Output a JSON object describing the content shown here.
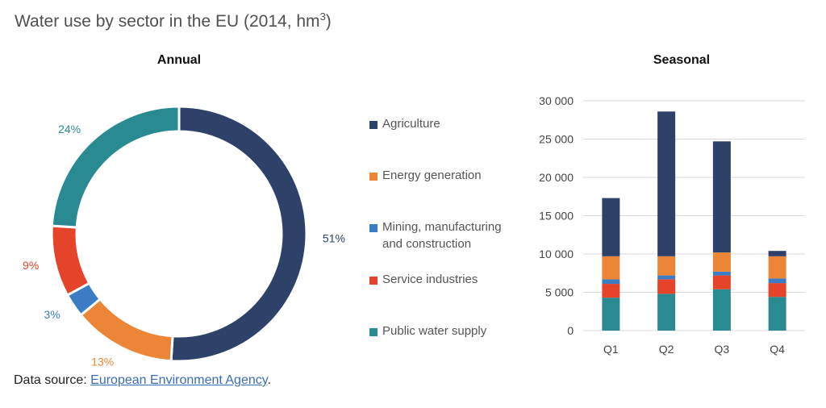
{
  "title": "Water use by sector in the EU (2014, hm",
  "title_sup": "3",
  "title_close": ")",
  "source": {
    "prefix": "Data source: ",
    "link_text": "European Environment Agency",
    "suffix": "."
  },
  "legend": [
    {
      "label": "Agriculture",
      "color": "#2e4169"
    },
    {
      "label": "Energy generation",
      "color": "#ed8536"
    },
    {
      "label": "Mining, manufacturing and construction",
      "color": "#3a7dc5"
    },
    {
      "label": "Service industries",
      "color": "#e5432a"
    },
    {
      "label": "Public water supply",
      "color": "#2a8a92"
    }
  ],
  "chart_data": [
    {
      "type": "pie",
      "title": "Annual",
      "donut": true,
      "slices": [
        {
          "name": "Agriculture",
          "value": 51,
          "label": "51%",
          "color": "#2e4169"
        },
        {
          "name": "Energy generation",
          "value": 13,
          "label": "13%",
          "color": "#ed8536"
        },
        {
          "name": "Mining, manufacturing and construction",
          "value": 3,
          "label": "3%",
          "color": "#3a7dc5"
        },
        {
          "name": "Service industries",
          "value": 9,
          "label": "9%",
          "color": "#e5432a"
        },
        {
          "name": "Public water supply",
          "value": 24,
          "label": "24%",
          "color": "#2a8a92"
        }
      ]
    },
    {
      "type": "bar",
      "stacked": true,
      "title": "Seasonal",
      "categories": [
        "Q1",
        "Q2",
        "Q3",
        "Q4"
      ],
      "ylim": [
        0,
        30000
      ],
      "yticks": [
        0,
        5000,
        10000,
        15000,
        20000,
        25000,
        30000
      ],
      "ytick_labels": [
        "0",
        "5 000",
        "10 000",
        "15 000",
        "20 000",
        "25 000",
        "30 000"
      ],
      "grid": true,
      "series": [
        {
          "name": "Public water supply",
          "color": "#2a8a92",
          "values": [
            4300,
            4800,
            5400,
            4400
          ]
        },
        {
          "name": "Service industries",
          "color": "#e5432a",
          "values": [
            1800,
            1900,
            1800,
            1800
          ]
        },
        {
          "name": "Mining, manufacturing and construction",
          "color": "#3a7dc5",
          "values": [
            600,
            500,
            500,
            600
          ]
        },
        {
          "name": "Energy generation",
          "color": "#ed8536",
          "values": [
            3000,
            2500,
            2500,
            2900
          ]
        },
        {
          "name": "Agriculture",
          "color": "#2e4169",
          "values": [
            7600,
            18900,
            14500,
            700
          ]
        }
      ]
    }
  ]
}
